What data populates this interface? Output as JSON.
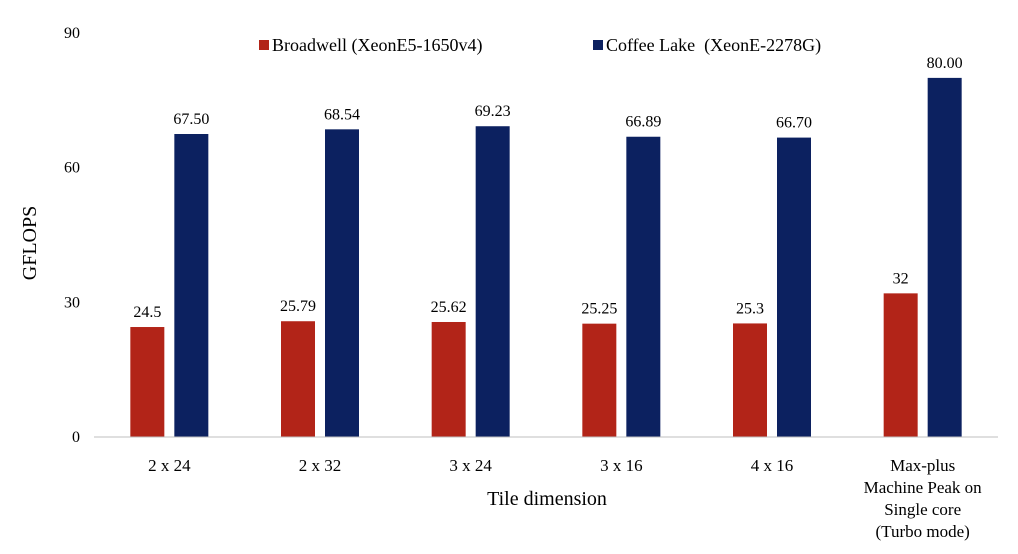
{
  "chart_data": {
    "type": "bar",
    "title": "",
    "xlabel": "Tile dimension",
    "ylabel": "GFLOPS",
    "ylim": [
      0,
      90
    ],
    "yticks": [
      "0",
      "30",
      "60",
      "90"
    ],
    "grid": false,
    "legend_position": "top",
    "categories": [
      [
        "2 x 24"
      ],
      [
        "2 x 32"
      ],
      [
        "3 x 24"
      ],
      [
        "3 x 16"
      ],
      [
        "4 x 16"
      ],
      [
        "Max-plus",
        "Machine Peak on",
        "Single core",
        "(Turbo mode)"
      ]
    ],
    "series": [
      {
        "name": "Broadwell (XeonE5-1650v4)",
        "color": "#b22418",
        "values": [
          24.5,
          25.79,
          25.62,
          25.25,
          25.3,
          32
        ],
        "labels": [
          "24.5",
          "25.79",
          "25.62",
          "25.25",
          "25.3",
          "32"
        ]
      },
      {
        "name": "Coffee Lake  (XeonE-2278G)",
        "color": "#0c2160",
        "values": [
          67.5,
          68.54,
          69.23,
          66.89,
          66.7,
          80.0
        ],
        "labels": [
          "67.50",
          "68.54",
          "69.23",
          "66.89",
          "66.70",
          "80.00"
        ]
      }
    ]
  }
}
